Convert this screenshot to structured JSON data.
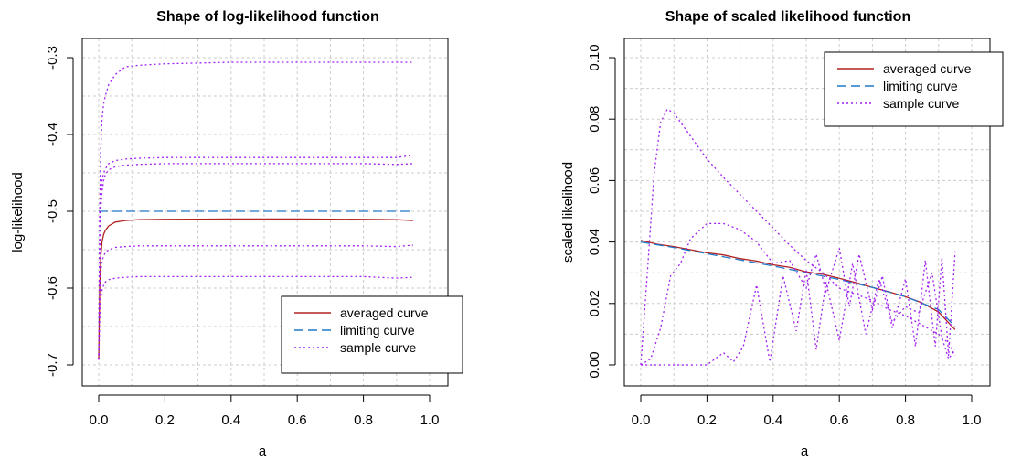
{
  "colors": {
    "averaged": "#b22222",
    "limiting": "#1f78c8",
    "sample": "#a020f0",
    "grid": "#cccccc",
    "frame": "#000000"
  },
  "chart_data": [
    {
      "type": "line",
      "title": "Shape of log-likelihood function",
      "xlabel": "a",
      "ylabel": "log-likelihood",
      "xlim": [
        0,
        1
      ],
      "ylim": [
        -0.7,
        -0.3
      ],
      "xticks": [
        "0.0",
        "0.2",
        "0.4",
        "0.6",
        "0.8",
        "1.0"
      ],
      "yticks": [
        "-0.7",
        "-0.6",
        "-0.5",
        "-0.4",
        "-0.3"
      ],
      "grid": true,
      "legend_position": "bottom-right",
      "legend": [
        "averaged curve",
        "limiting curve",
        "sample curve"
      ],
      "series": [
        {
          "name": "averaged curve",
          "style": "solid",
          "color": "averaged",
          "x": [
            0,
            0.003,
            0.006,
            0.01,
            0.015,
            0.02,
            0.03,
            0.05,
            0.08,
            0.12,
            0.2,
            0.3,
            0.4,
            0.5,
            0.6,
            0.7,
            0.8,
            0.9,
            0.95
          ],
          "y": [
            -0.693,
            -0.6,
            -0.56,
            -0.54,
            -0.53,
            -0.525,
            -0.519,
            -0.514,
            -0.512,
            -0.511,
            -0.5105,
            -0.5102,
            -0.51,
            -0.51,
            -0.51,
            -0.5102,
            -0.5105,
            -0.511,
            -0.512
          ]
        },
        {
          "name": "limiting curve",
          "style": "dashed",
          "color": "limiting",
          "x": [
            0,
            0.95
          ],
          "y": [
            -0.5,
            -0.5
          ]
        },
        {
          "name": "sample curve",
          "style": "dotted",
          "color": "sample",
          "x": [
            0,
            0.003,
            0.006,
            0.01,
            0.015,
            0.02,
            0.03,
            0.05,
            0.08,
            0.12,
            0.2,
            0.3,
            0.4,
            0.5,
            0.6,
            0.7,
            0.8,
            0.9,
            0.95
          ],
          "y": [
            -0.693,
            -0.5,
            -0.42,
            -0.38,
            -0.36,
            -0.35,
            -0.335,
            -0.322,
            -0.312,
            -0.31,
            -0.308,
            -0.307,
            -0.306,
            -0.306,
            -0.306,
            -0.306,
            -0.306,
            -0.306,
            -0.306
          ]
        },
        {
          "name": "sample curve",
          "style": "dotted",
          "color": "sample",
          "x": [
            0,
            0.003,
            0.006,
            0.01,
            0.015,
            0.02,
            0.03,
            0.05,
            0.08,
            0.12,
            0.2,
            0.3,
            0.4,
            0.5,
            0.6,
            0.7,
            0.8,
            0.9,
            0.95
          ],
          "y": [
            -0.693,
            -0.55,
            -0.48,
            -0.46,
            -0.45,
            -0.445,
            -0.438,
            -0.434,
            -0.432,
            -0.431,
            -0.43,
            -0.43,
            -0.43,
            -0.43,
            -0.43,
            -0.43,
            -0.43,
            -0.43,
            -0.427
          ]
        },
        {
          "name": "sample curve",
          "style": "dotted",
          "color": "sample",
          "x": [
            0,
            0.003,
            0.006,
            0.01,
            0.015,
            0.02,
            0.03,
            0.05,
            0.08,
            0.12,
            0.2,
            0.3,
            0.4,
            0.5,
            0.6,
            0.7,
            0.8,
            0.9,
            0.95
          ],
          "y": [
            -0.693,
            -0.56,
            -0.5,
            -0.475,
            -0.46,
            -0.452,
            -0.446,
            -0.442,
            -0.44,
            -0.439,
            -0.438,
            -0.438,
            -0.438,
            -0.438,
            -0.438,
            -0.438,
            -0.438,
            -0.439,
            -0.438
          ]
        },
        {
          "name": "sample curve",
          "style": "dotted",
          "color": "sample",
          "x": [
            0,
            0.003,
            0.006,
            0.01,
            0.015,
            0.02,
            0.03,
            0.05,
            0.08,
            0.12,
            0.2,
            0.3,
            0.4,
            0.5,
            0.6,
            0.7,
            0.8,
            0.9,
            0.95
          ],
          "y": [
            -0.693,
            -0.62,
            -0.58,
            -0.565,
            -0.558,
            -0.554,
            -0.55,
            -0.547,
            -0.546,
            -0.545,
            -0.545,
            -0.545,
            -0.545,
            -0.545,
            -0.545,
            -0.545,
            -0.545,
            -0.546,
            -0.544
          ]
        },
        {
          "name": "sample curve",
          "style": "dotted",
          "color": "sample",
          "x": [
            0,
            0.003,
            0.006,
            0.01,
            0.015,
            0.02,
            0.03,
            0.05,
            0.08,
            0.12,
            0.2,
            0.3,
            0.4,
            0.5,
            0.6,
            0.7,
            0.8,
            0.9,
            0.95
          ],
          "y": [
            -0.693,
            -0.64,
            -0.615,
            -0.603,
            -0.596,
            -0.592,
            -0.589,
            -0.587,
            -0.586,
            -0.585,
            -0.585,
            -0.585,
            -0.585,
            -0.585,
            -0.585,
            -0.585,
            -0.585,
            -0.587,
            -0.586
          ]
        }
      ]
    },
    {
      "type": "line",
      "title": "Shape of scaled likelihood function",
      "xlabel": "a",
      "ylabel": "scaled likelihood",
      "xlim": [
        0,
        1
      ],
      "ylim": [
        0,
        0.1
      ],
      "xticks": [
        "0.0",
        "0.2",
        "0.4",
        "0.6",
        "0.8",
        "1.0"
      ],
      "yticks": [
        "0.00",
        "0.02",
        "0.04",
        "0.06",
        "0.08",
        "0.10"
      ],
      "grid": true,
      "legend_position": "top-right",
      "legend": [
        "averaged curve",
        "limiting curve",
        "sample curve"
      ],
      "series": [
        {
          "name": "averaged curve",
          "style": "solid",
          "color": "averaged",
          "x": [
            0,
            0.05,
            0.1,
            0.15,
            0.2,
            0.25,
            0.3,
            0.35,
            0.4,
            0.45,
            0.5,
            0.55,
            0.6,
            0.65,
            0.7,
            0.75,
            0.8,
            0.85,
            0.9,
            0.95
          ],
          "y": [
            0.0405,
            0.0393,
            0.0385,
            0.0375,
            0.0365,
            0.0358,
            0.0346,
            0.0338,
            0.0326,
            0.0318,
            0.0303,
            0.0295,
            0.0282,
            0.0268,
            0.0252,
            0.0238,
            0.0222,
            0.0202,
            0.0172,
            0.0115
          ]
        },
        {
          "name": "limiting curve",
          "style": "dashed",
          "color": "limiting",
          "x": [
            0,
            0.1,
            0.2,
            0.3,
            0.4,
            0.5,
            0.6,
            0.7,
            0.8,
            0.9,
            0.95
          ],
          "y": [
            0.04,
            0.0382,
            0.0362,
            0.0342,
            0.0322,
            0.03,
            0.0278,
            0.0252,
            0.0222,
            0.018,
            0.0125
          ]
        },
        {
          "name": "sample curve",
          "style": "dotted",
          "color": "sample",
          "x": [
            0,
            0.02,
            0.04,
            0.06,
            0.08,
            0.1,
            0.15,
            0.2,
            0.25,
            0.3,
            0.35,
            0.4,
            0.45,
            0.5,
            0.55,
            0.6,
            0.65,
            0.7,
            0.75,
            0.8,
            0.85,
            0.9,
            0.93,
            0.95
          ],
          "y": [
            0,
            0.03,
            0.062,
            0.079,
            0.0832,
            0.082,
            0.0745,
            0.067,
            0.061,
            0.0555,
            0.05,
            0.0445,
            0.039,
            0.034,
            0.03,
            0.025,
            0.023,
            0.021,
            0.018,
            0.016,
            0.013,
            0.01,
            0.007,
            0.003
          ]
        },
        {
          "name": "sample curve",
          "style": "dotted",
          "color": "sample",
          "x": [
            0,
            0.03,
            0.06,
            0.09,
            0.12,
            0.15,
            0.2,
            0.25,
            0.3,
            0.35,
            0.4,
            0.45,
            0.5,
            0.53,
            0.56,
            0.6,
            0.63,
            0.66,
            0.7,
            0.73,
            0.76,
            0.8,
            0.83,
            0.86,
            0.89,
            0.91,
            0.93,
            0.95
          ],
          "y": [
            0,
            0.002,
            0.012,
            0.029,
            0.033,
            0.041,
            0.046,
            0.046,
            0.044,
            0.04,
            0.033,
            0.034,
            0.025,
            0.036,
            0.024,
            0.038,
            0.019,
            0.036,
            0.018,
            0.029,
            0.012,
            0.028,
            0.006,
            0.034,
            0.006,
            0.035,
            0.003,
            0.037
          ]
        },
        {
          "name": "sample curve",
          "style": "dotted",
          "color": "sample",
          "x": [
            0,
            0.05,
            0.1,
            0.15,
            0.2,
            0.25,
            0.28,
            0.31,
            0.35,
            0.39,
            0.43,
            0.47,
            0.5,
            0.53,
            0.56,
            0.6,
            0.64,
            0.68,
            0.72,
            0.76,
            0.8,
            0.84,
            0.88,
            0.91,
            0.93,
            0.95
          ],
          "y": [
            0,
            0,
            0,
            0,
            0,
            0.004,
            0.001,
            0.006,
            0.026,
            0.001,
            0.029,
            0.011,
            0.031,
            0.005,
            0.027,
            0.008,
            0.033,
            0.01,
            0.028,
            0.014,
            0.019,
            0.017,
            0.03,
            0.009,
            0.002,
            0.005
          ]
        }
      ]
    }
  ]
}
